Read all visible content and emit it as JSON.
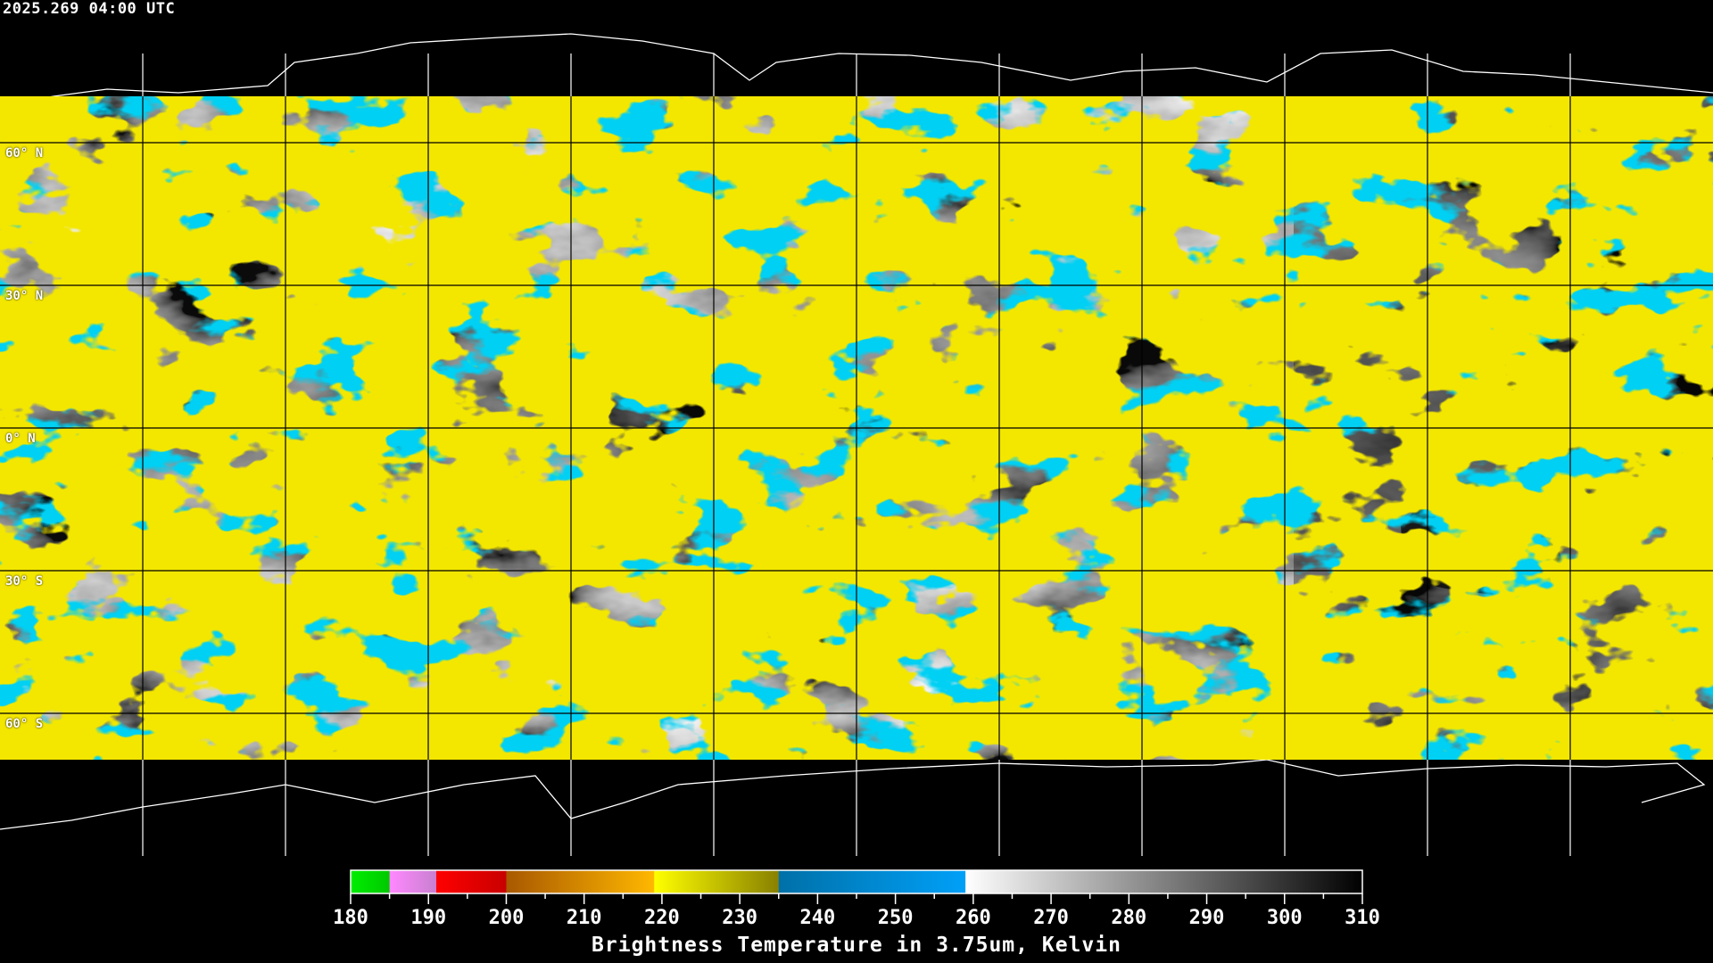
{
  "header": {
    "timestamp": "2025.269 04:00 UTC"
  },
  "map": {
    "projection": "equirectangular",
    "lon_range": [
      -180,
      180
    ],
    "lat_range": [
      -90,
      90
    ],
    "grid_spacing_deg": 30,
    "lat_labels": [
      "60° N",
      "30° N",
      "0° N",
      "30° S",
      "60° S"
    ],
    "grid_color_over_data": "#000000",
    "grid_color_over_background": "#ffffff",
    "coastline_color_outside_data": "#ffffff"
  },
  "colorbar": {
    "title": "Brightness Temperature in 3.75um, Kelvin",
    "min": 180,
    "max": 310,
    "tick_labels": [
      "180",
      "190",
      "200",
      "210",
      "220",
      "230",
      "240",
      "250",
      "260",
      "270",
      "280",
      "290",
      "300",
      "310"
    ],
    "segments": [
      {
        "from": 180,
        "to": 185,
        "colors": [
          "#00ee00",
          "#00c800"
        ]
      },
      {
        "from": 185,
        "to": 191,
        "colors": [
          "#ff88ff",
          "#c880d0"
        ]
      },
      {
        "from": 191,
        "to": 200,
        "colors": [
          "#ff0000",
          "#c80000"
        ]
      },
      {
        "from": 200,
        "to": 219,
        "colors": [
          "#a85800",
          "#ffb800"
        ]
      },
      {
        "from": 219,
        "to": 235,
        "colors": [
          "#ffff00",
          "#888000"
        ]
      },
      {
        "from": 235,
        "to": 259,
        "colors": [
          "#0070a8",
          "#00a0f8"
        ]
      },
      {
        "from": 259,
        "to": 310,
        "colors": [
          "#ffffff",
          "#000000"
        ]
      }
    ]
  }
}
